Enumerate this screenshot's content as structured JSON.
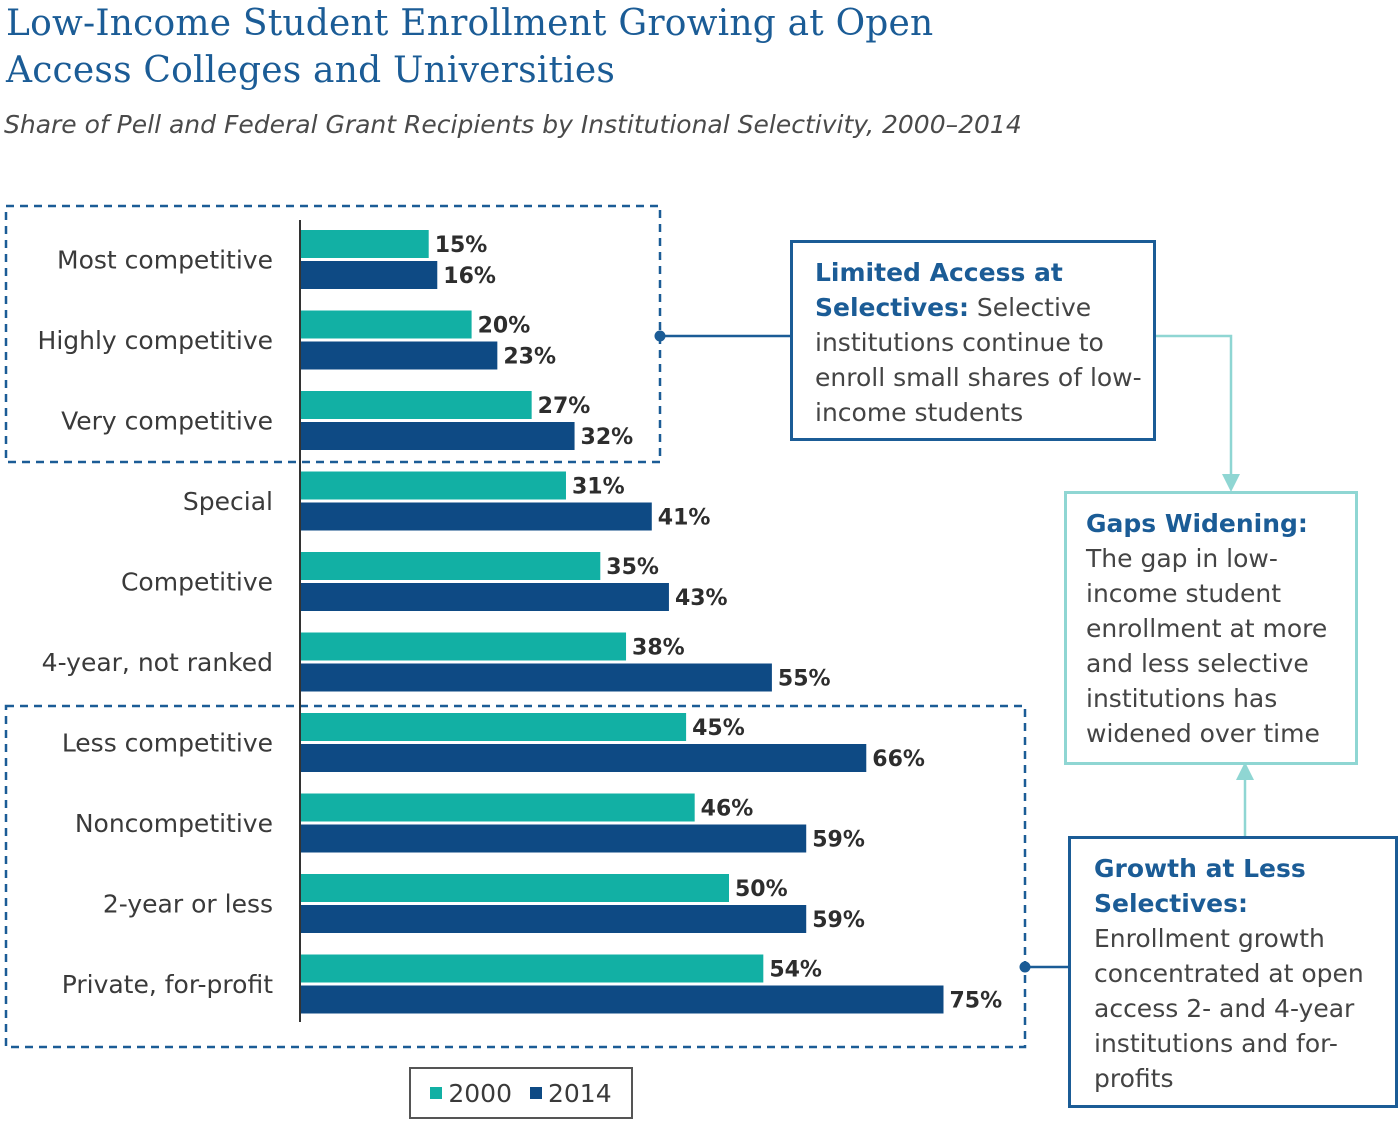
{
  "chart_data": {
    "type": "bar",
    "orientation": "horizontal",
    "title": "Low-Income Student Enrollment Growing at Open Access Colleges and Universities",
    "subtitle": "Share of Pell and Federal Grant Recipients by Institutional Selectivity, 2000–2014",
    "categories": [
      "Most competitive",
      "Highly competitive",
      "Very competitive",
      "Special",
      "Competitive",
      "4-year, not ranked",
      "Less competitive",
      "Noncompetitive",
      "2-year or less",
      "Private, for-profit"
    ],
    "series": [
      {
        "name": "2000",
        "values": [
          15,
          20,
          27,
          31,
          35,
          38,
          45,
          46,
          50,
          54
        ]
      },
      {
        "name": "2014",
        "values": [
          16,
          23,
          32,
          41,
          43,
          55,
          66,
          59,
          59,
          75
        ]
      }
    ],
    "value_suffix": "%",
    "xlim": [
      0,
      100
    ],
    "grid": false,
    "legend": "bottom",
    "colors": {
      "2000": "#12b0a4",
      "2014": "#0e4a84",
      "accent": "#1b5c96",
      "teal_outline": "#8fd6d3"
    },
    "annotations": [
      {
        "id": "limited",
        "heading": "Limited Access at Selectives:",
        "body": "Selective institutions continue to enroll small shares of low-income students"
      },
      {
        "id": "gaps",
        "heading": "Gaps Widening:",
        "body": "The gap in low-income student enrollment at more and less selective institutions has widened over time"
      },
      {
        "id": "growth",
        "heading": "Growth at Less Selectives:",
        "body": "Enrollment growth concentrated at open access 2- and 4-year institutions and for-profits"
      }
    ]
  }
}
